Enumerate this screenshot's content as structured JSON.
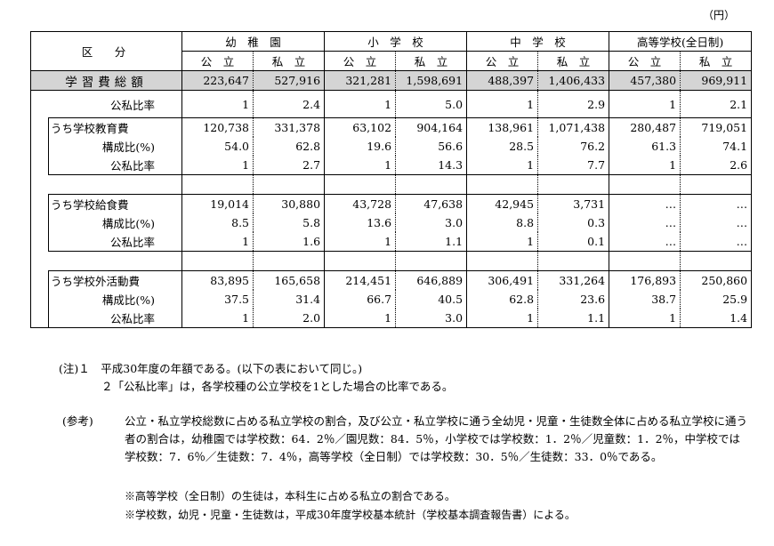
{
  "unit": "（円）",
  "header": {
    "category": "区　分",
    "schools": [
      "幼　稚　園",
      "小　学　校",
      "中　学　校",
      "高等学校(全日制)"
    ],
    "types": [
      "公　立",
      "私　立"
    ]
  },
  "total": {
    "label": "学習費総額",
    "values": [
      "223,647",
      "527,916",
      "321,281",
      "1,598,691",
      "488,397",
      "1,406,433",
      "457,380",
      "969,911"
    ]
  },
  "total_ratio": {
    "label": "公私比率",
    "values": [
      "1",
      "2.4",
      "1",
      "5.0",
      "1",
      "2.9",
      "1",
      "2.1"
    ]
  },
  "groups": [
    {
      "title": "うち学校教育費",
      "values": [
        "120,738",
        "331,378",
        "63,102",
        "904,164",
        "138,961",
        "1,071,438",
        "280,487",
        "719,051"
      ],
      "comp_label": "構成比(%)",
      "comp": [
        "54.0",
        "62.8",
        "19.6",
        "56.6",
        "28.5",
        "76.2",
        "61.3",
        "74.1"
      ],
      "ratio_label": "公私比率",
      "ratio": [
        "1",
        "2.7",
        "1",
        "14.3",
        "1",
        "7.7",
        "1",
        "2.6"
      ]
    },
    {
      "title": "うち学校給食費",
      "values": [
        "19,014",
        "30,880",
        "43,728",
        "47,638",
        "42,945",
        "3,731",
        "…",
        "…"
      ],
      "comp_label": "構成比(%)",
      "comp": [
        "8.5",
        "5.8",
        "13.6",
        "3.0",
        "8.8",
        "0.3",
        "…",
        "…"
      ],
      "ratio_label": "公私比率",
      "ratio": [
        "1",
        "1.6",
        "1",
        "1.1",
        "1",
        "0.1",
        "…",
        "…"
      ]
    },
    {
      "title": "うち学校外活動費",
      "values": [
        "83,895",
        "165,658",
        "214,451",
        "646,889",
        "306,491",
        "331,264",
        "176,893",
        "250,860"
      ],
      "comp_label": "構成比(%)",
      "comp": [
        "37.5",
        "31.4",
        "66.7",
        "40.5",
        "62.8",
        "23.6",
        "38.7",
        "25.9"
      ],
      "ratio_label": "公私比率",
      "ratio": [
        "1",
        "2.0",
        "1",
        "3.0",
        "1",
        "1.1",
        "1",
        "1.4"
      ]
    }
  ],
  "notes": {
    "n1": "(注)１　平成30年度の年額である。(以下の表において同じ。)",
    "n2": "２「公私比率」は，各学校種の公立学校を1とした場合の比率である。"
  },
  "reference": {
    "label": "(参考)",
    "text": "公立・私立学校総数に占める私立学校の割合，及び公立・私立学校に通う全幼児・児童・生徒数全体に占める私立学校に通う者の割合は，幼稚園では学校数：64．2％／園児数：84．5％，小学校では学校数：1．2％／児童数：1．2％，中学校では学校数：7．6％／生徒数：7．4％，高等学校（全日制）では学校数：30．5％／生徒数：33．0％である。",
    "s1": "※高等学校（全日制）の生徒は，本科生に占める私立の割合である。",
    "s2": "※学校数，幼児・児童・生徒数は，平成30年度学校基本統計（学校基本調査報告書）による。"
  }
}
